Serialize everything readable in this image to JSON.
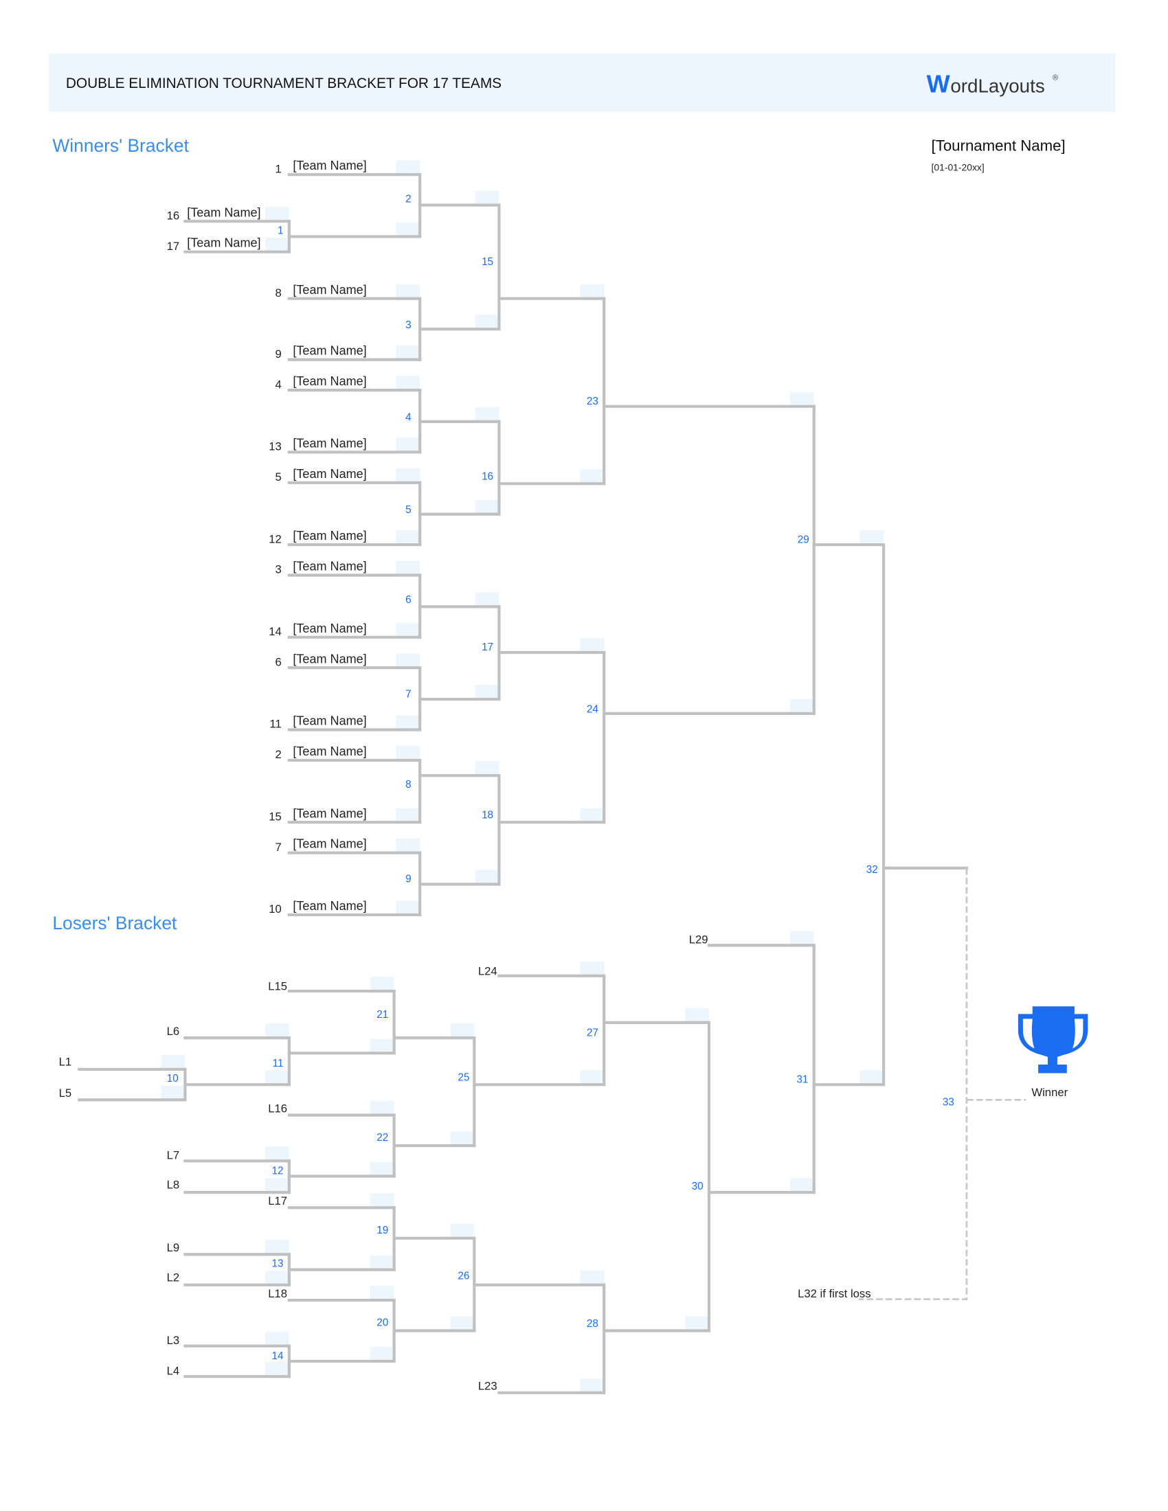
{
  "header": {
    "title": "DOUBLE ELIMINATION TOURNAMENT BRACKET FOR 17 TEAMS",
    "logo_text": "WordLayouts",
    "background_color": "#eef6fd"
  },
  "tournament": {
    "name": "[Tournament Name]",
    "date": "[01-01-20xx]"
  },
  "winners_bracket": {
    "title": "Winners' Bracket",
    "teams": [
      {
        "seed": "1",
        "name": "[Team Name]"
      },
      {
        "seed": "16",
        "name": "[Team Name]"
      },
      {
        "seed": "17",
        "name": "[Team Name]"
      },
      {
        "seed": "8",
        "name": "[Team Name]"
      },
      {
        "seed": "9",
        "name": "[Team Name]"
      },
      {
        "seed": "4",
        "name": "[Team Name]"
      },
      {
        "seed": "13",
        "name": "[Team Name]"
      },
      {
        "seed": "5",
        "name": "[Team Name]"
      },
      {
        "seed": "12",
        "name": "[Team Name]"
      },
      {
        "seed": "3",
        "name": "[Team Name]"
      },
      {
        "seed": "14",
        "name": "[Team Name]"
      },
      {
        "seed": "6",
        "name": "[Team Name]"
      },
      {
        "seed": "11",
        "name": "[Team Name]"
      },
      {
        "seed": "2",
        "name": "[Team Name]"
      },
      {
        "seed": "15",
        "name": "[Team Name]"
      },
      {
        "seed": "7",
        "name": "[Team Name]"
      },
      {
        "seed": "10",
        "name": "[Team Name]"
      }
    ]
  },
  "losers_bracket": {
    "title": "Losers' Bracket",
    "entries": [
      "L15",
      "L6",
      "L1",
      "L5",
      "L16",
      "L7",
      "L8",
      "L17",
      "L9",
      "L2",
      "L18",
      "L3",
      "L4",
      "L24",
      "L23",
      "L29"
    ]
  },
  "matches": [
    "1",
    "2",
    "3",
    "4",
    "5",
    "6",
    "7",
    "8",
    "9",
    "15",
    "16",
    "17",
    "18",
    "23",
    "24",
    "29",
    "32",
    "10",
    "11",
    "21",
    "22",
    "12",
    "19",
    "13",
    "20",
    "14",
    "25",
    "26",
    "27",
    "28",
    "30",
    "31",
    "33"
  ],
  "final": {
    "winner_label": "Winner",
    "reset_note": "L32 if first loss",
    "trophy_icon": "trophy-icon"
  },
  "colors": {
    "accent": "#1a6cf0",
    "section_title": "#3a8ee6",
    "line": "#c0c0c0",
    "score_box": "#eef6fd"
  }
}
